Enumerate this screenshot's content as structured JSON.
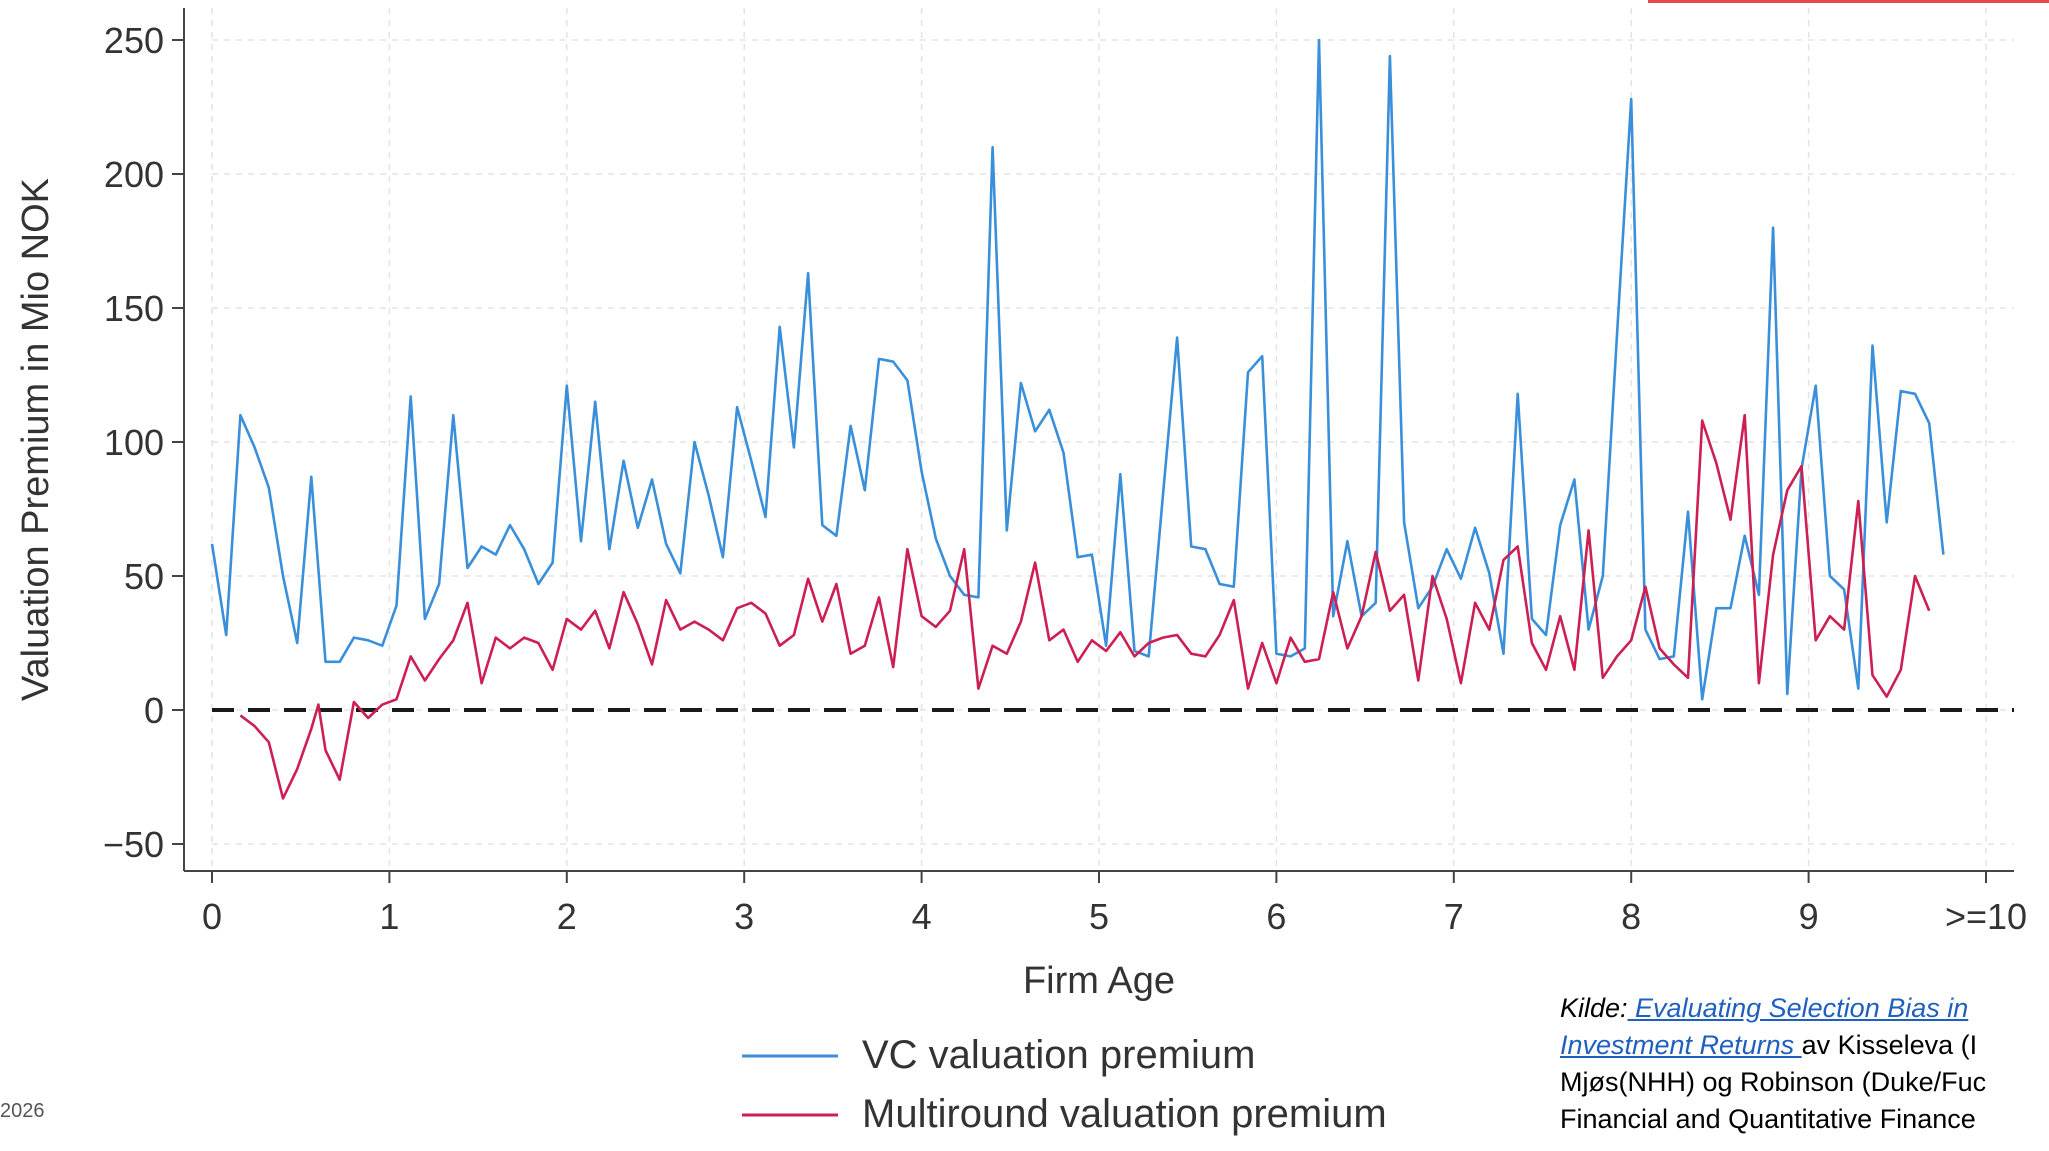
{
  "colors": {
    "vc_series": "#3a8fdb",
    "multiround_series": "#cc1f52",
    "zero_line": "#1a1a1a",
    "axis": "#444444",
    "grid": "#e3e3e3",
    "link": "#1f5fbf",
    "top_accent": "#e5474f"
  },
  "footer": {
    "year_fragment": "2026"
  },
  "source": {
    "prefix": "Kilde:",
    "link_line1": " Evaluating Selection Bias in",
    "link_line2": "Investment Returns ",
    "line2_rest": "av Kisseleva (I",
    "line3": "Mjøs(NHH) og Robinson (Duke/Fuc",
    "line4": "Financial and Quantitative Finance"
  },
  "chart_data": {
    "type": "line",
    "xlabel": "Firm Age",
    "ylabel": "Valuation Premium in Mio NOK",
    "xlim": [
      0,
      10
    ],
    "ylim": [
      -60,
      255
    ],
    "x_ticks": [
      0,
      1,
      2,
      3,
      4,
      5,
      6,
      7,
      8,
      9,
      10
    ],
    "x_tick_labels": [
      "0",
      "1",
      "2",
      "3",
      "4",
      "5",
      "6",
      "7",
      "8",
      "9",
      ">=10"
    ],
    "y_ticks": [
      -50,
      0,
      50,
      100,
      150,
      200,
      250
    ],
    "y_tick_labels": [
      "−50",
      "0",
      "50",
      "100",
      "150",
      "200",
      "250"
    ],
    "grid": true,
    "reference_line": {
      "y": 0,
      "style": "dashed"
    },
    "legend_position": "bottom-center",
    "series": [
      {
        "name": "VC valuation premium",
        "points": [
          [
            0.0,
            62
          ],
          [
            0.08,
            28
          ],
          [
            0.16,
            110
          ],
          [
            0.24,
            98
          ],
          [
            0.32,
            83
          ],
          [
            0.4,
            50
          ],
          [
            0.48,
            25
          ],
          [
            0.56,
            87
          ],
          [
            0.64,
            18
          ],
          [
            0.72,
            18
          ],
          [
            0.8,
            27
          ],
          [
            0.88,
            26
          ],
          [
            0.96,
            24
          ],
          [
            1.04,
            39
          ],
          [
            1.12,
            117
          ],
          [
            1.2,
            34
          ],
          [
            1.28,
            47
          ],
          [
            1.36,
            110
          ],
          [
            1.44,
            53
          ],
          [
            1.52,
            61
          ],
          [
            1.6,
            58
          ],
          [
            1.68,
            69
          ],
          [
            1.76,
            60
          ],
          [
            1.84,
            47
          ],
          [
            1.92,
            55
          ],
          [
            2.0,
            121
          ],
          [
            2.08,
            63
          ],
          [
            2.16,
            115
          ],
          [
            2.24,
            60
          ],
          [
            2.32,
            93
          ],
          [
            2.4,
            68
          ],
          [
            2.48,
            86
          ],
          [
            2.56,
            62
          ],
          [
            2.64,
            51
          ],
          [
            2.72,
            100
          ],
          [
            2.8,
            80
          ],
          [
            2.88,
            57
          ],
          [
            2.96,
            113
          ],
          [
            3.04,
            93
          ],
          [
            3.12,
            72
          ],
          [
            3.2,
            143
          ],
          [
            3.28,
            98
          ],
          [
            3.36,
            163
          ],
          [
            3.44,
            69
          ],
          [
            3.52,
            65
          ],
          [
            3.6,
            106
          ],
          [
            3.68,
            82
          ],
          [
            3.76,
            131
          ],
          [
            3.84,
            130
          ],
          [
            3.92,
            123
          ],
          [
            4.0,
            89
          ],
          [
            4.08,
            64
          ],
          [
            4.16,
            50
          ],
          [
            4.24,
            43
          ],
          [
            4.32,
            42
          ],
          [
            4.4,
            210
          ],
          [
            4.48,
            67
          ],
          [
            4.56,
            122
          ],
          [
            4.64,
            104
          ],
          [
            4.72,
            112
          ],
          [
            4.8,
            96
          ],
          [
            4.88,
            57
          ],
          [
            4.96,
            58
          ],
          [
            5.04,
            24
          ],
          [
            5.12,
            88
          ],
          [
            5.2,
            22
          ],
          [
            5.28,
            20
          ],
          [
            5.36,
            80
          ],
          [
            5.44,
            139
          ],
          [
            5.52,
            61
          ],
          [
            5.6,
            60
          ],
          [
            5.68,
            47
          ],
          [
            5.76,
            46
          ],
          [
            5.84,
            126
          ],
          [
            5.92,
            132
          ],
          [
            6.0,
            21
          ],
          [
            6.08,
            20
          ],
          [
            6.16,
            23
          ],
          [
            6.24,
            250
          ],
          [
            6.32,
            35
          ],
          [
            6.4,
            63
          ],
          [
            6.48,
            35
          ],
          [
            6.56,
            40
          ],
          [
            6.64,
            244
          ],
          [
            6.72,
            70
          ],
          [
            6.8,
            38
          ],
          [
            6.88,
            46
          ],
          [
            6.96,
            60
          ],
          [
            7.04,
            49
          ],
          [
            7.12,
            68
          ],
          [
            7.2,
            51
          ],
          [
            7.28,
            21
          ],
          [
            7.36,
            118
          ],
          [
            7.44,
            34
          ],
          [
            7.52,
            28
          ],
          [
            7.6,
            69
          ],
          [
            7.68,
            86
          ],
          [
            7.76,
            30
          ],
          [
            7.84,
            50
          ],
          [
            7.92,
            140
          ],
          [
            8.0,
            228
          ],
          [
            8.08,
            30
          ],
          [
            8.16,
            19
          ],
          [
            8.24,
            20
          ],
          [
            8.32,
            74
          ],
          [
            8.4,
            4
          ],
          [
            8.48,
            38
          ],
          [
            8.56,
            38
          ],
          [
            8.64,
            65
          ],
          [
            8.72,
            43
          ],
          [
            8.8,
            180
          ],
          [
            8.88,
            6
          ],
          [
            8.96,
            90
          ],
          [
            9.04,
            121
          ],
          [
            9.12,
            50
          ],
          [
            9.2,
            45
          ],
          [
            9.28,
            8
          ],
          [
            9.36,
            136
          ],
          [
            9.44,
            70
          ],
          [
            9.52,
            119
          ],
          [
            9.6,
            118
          ],
          [
            9.68,
            107
          ],
          [
            9.76,
            58
          ]
        ]
      },
      {
        "name": "Multiround valuation premium",
        "points": [
          [
            0.16,
            -2
          ],
          [
            0.24,
            -6
          ],
          [
            0.32,
            -12
          ],
          [
            0.4,
            -33
          ],
          [
            0.48,
            -22
          ],
          [
            0.56,
            -7
          ],
          [
            0.6,
            2
          ],
          [
            0.64,
            -15
          ],
          [
            0.72,
            -26
          ],
          [
            0.8,
            3
          ],
          [
            0.88,
            -3
          ],
          [
            0.96,
            2
          ],
          [
            1.04,
            4
          ],
          [
            1.12,
            20
          ],
          [
            1.2,
            11
          ],
          [
            1.28,
            19
          ],
          [
            1.36,
            26
          ],
          [
            1.44,
            40
          ],
          [
            1.52,
            10
          ],
          [
            1.6,
            27
          ],
          [
            1.68,
            23
          ],
          [
            1.76,
            27
          ],
          [
            1.84,
            25
          ],
          [
            1.92,
            15
          ],
          [
            2.0,
            34
          ],
          [
            2.08,
            30
          ],
          [
            2.16,
            37
          ],
          [
            2.24,
            23
          ],
          [
            2.32,
            44
          ],
          [
            2.4,
            32
          ],
          [
            2.48,
            17
          ],
          [
            2.56,
            41
          ],
          [
            2.64,
            30
          ],
          [
            2.72,
            33
          ],
          [
            2.8,
            30
          ],
          [
            2.88,
            26
          ],
          [
            2.96,
            38
          ],
          [
            3.04,
            40
          ],
          [
            3.12,
            36
          ],
          [
            3.2,
            24
          ],
          [
            3.28,
            28
          ],
          [
            3.36,
            49
          ],
          [
            3.44,
            33
          ],
          [
            3.52,
            47
          ],
          [
            3.6,
            21
          ],
          [
            3.68,
            24
          ],
          [
            3.76,
            42
          ],
          [
            3.84,
            16
          ],
          [
            3.92,
            60
          ],
          [
            4.0,
            35
          ],
          [
            4.08,
            31
          ],
          [
            4.16,
            37
          ],
          [
            4.24,
            60
          ],
          [
            4.32,
            8
          ],
          [
            4.4,
            24
          ],
          [
            4.48,
            21
          ],
          [
            4.56,
            33
          ],
          [
            4.64,
            55
          ],
          [
            4.72,
            26
          ],
          [
            4.8,
            30
          ],
          [
            4.88,
            18
          ],
          [
            4.96,
            26
          ],
          [
            5.04,
            22
          ],
          [
            5.12,
            29
          ],
          [
            5.2,
            20
          ],
          [
            5.28,
            25
          ],
          [
            5.36,
            27
          ],
          [
            5.44,
            28
          ],
          [
            5.52,
            21
          ],
          [
            5.6,
            20
          ],
          [
            5.68,
            28
          ],
          [
            5.76,
            41
          ],
          [
            5.84,
            8
          ],
          [
            5.92,
            25
          ],
          [
            6.0,
            10
          ],
          [
            6.08,
            27
          ],
          [
            6.16,
            18
          ],
          [
            6.24,
            19
          ],
          [
            6.32,
            44
          ],
          [
            6.4,
            23
          ],
          [
            6.48,
            35
          ],
          [
            6.56,
            59
          ],
          [
            6.64,
            37
          ],
          [
            6.72,
            43
          ],
          [
            6.8,
            11
          ],
          [
            6.88,
            50
          ],
          [
            6.96,
            34
          ],
          [
            7.04,
            10
          ],
          [
            7.12,
            40
          ],
          [
            7.2,
            30
          ],
          [
            7.28,
            56
          ],
          [
            7.36,
            61
          ],
          [
            7.44,
            25
          ],
          [
            7.52,
            15
          ],
          [
            7.6,
            35
          ],
          [
            7.68,
            15
          ],
          [
            7.76,
            67
          ],
          [
            7.84,
            12
          ],
          [
            7.92,
            20
          ],
          [
            8.0,
            26
          ],
          [
            8.08,
            46
          ],
          [
            8.16,
            23
          ],
          [
            8.24,
            17
          ],
          [
            8.32,
            12
          ],
          [
            8.4,
            108
          ],
          [
            8.48,
            92
          ],
          [
            8.56,
            71
          ],
          [
            8.64,
            110
          ],
          [
            8.72,
            10
          ],
          [
            8.8,
            58
          ],
          [
            8.88,
            82
          ],
          [
            8.96,
            91
          ],
          [
            9.04,
            26
          ],
          [
            9.12,
            35
          ],
          [
            9.2,
            30
          ],
          [
            9.28,
            78
          ],
          [
            9.36,
            13
          ],
          [
            9.44,
            5
          ],
          [
            9.52,
            15
          ],
          [
            9.6,
            50
          ],
          [
            9.68,
            37
          ]
        ]
      }
    ],
    "legend": [
      {
        "label": "VC valuation premium",
        "series": 0
      },
      {
        "label": "Multiround valuation premium",
        "series": 1
      }
    ]
  }
}
